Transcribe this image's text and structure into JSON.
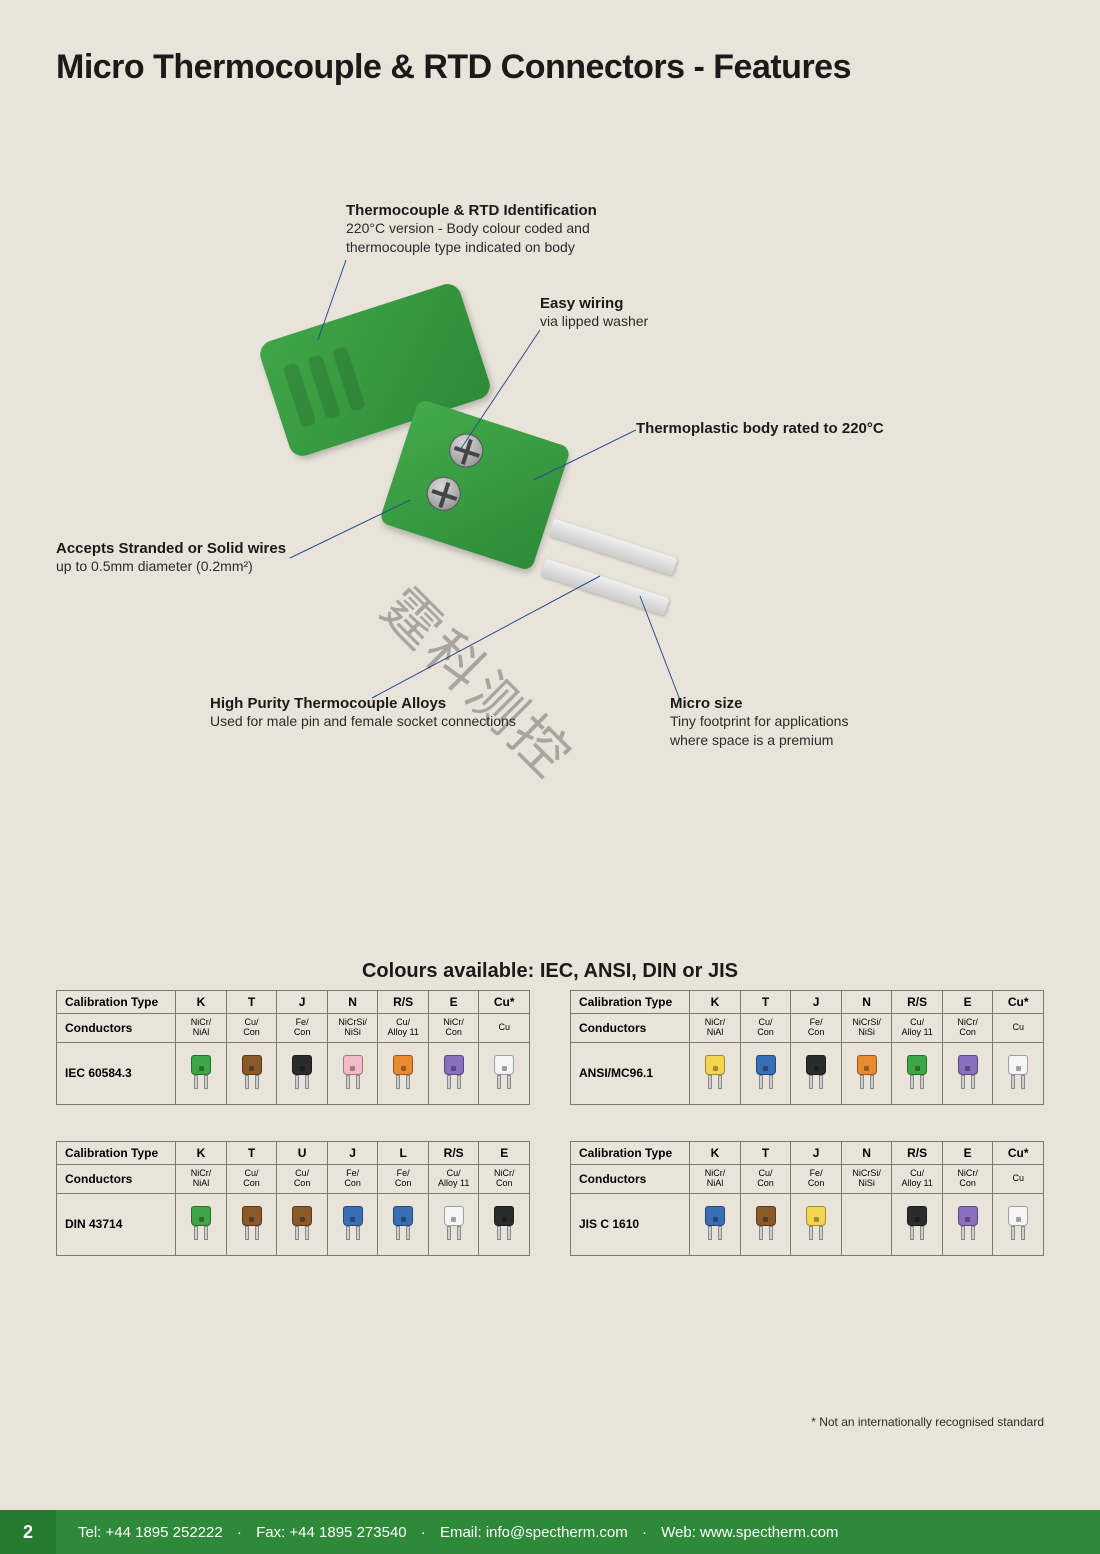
{
  "title": "Micro Thermocouple & RTD Connectors - Features",
  "callouts": {
    "identification": {
      "title": "Thermocouple & RTD Identification",
      "sub": "220°C version - Body colour coded and\nthermocouple type indicated on body"
    },
    "wiring": {
      "title": "Easy wiring",
      "sub": "via lipped washer"
    },
    "body": {
      "title": "Thermoplastic body rated to 220°C"
    },
    "wires": {
      "title": "Accepts Stranded or Solid wires",
      "sub": "up to 0.5mm diameter (0.2mm²)"
    },
    "alloys": {
      "title": "High Purity Thermocouple Alloys",
      "sub": "Used for male pin and female socket connections"
    },
    "micro": {
      "title": "Micro size",
      "sub": "Tiny footprint for applications\nwhere space is a premium"
    }
  },
  "tables_heading": "Colours available: IEC, ANSI, DIN or JIS",
  "row_labels": {
    "calibration": "Calibration Type",
    "conductors": "Conductors"
  },
  "colors": {
    "green": "#3fa648",
    "brown": "#8b5a2b",
    "black": "#2b2b2b",
    "pink": "#f4b9c9",
    "orange": "#e98a2e",
    "violet": "#8a6fbf",
    "white": "#f5f5f5",
    "yellow": "#f3d64e",
    "blue": "#3b6fb5",
    "red": "#c43a3a",
    "grey": "#6e6e6e"
  },
  "tables": [
    {
      "standard": "IEC 60584.3",
      "types": [
        "K",
        "T",
        "J",
        "N",
        "R/S",
        "E",
        "Cu*"
      ],
      "conductors": [
        "NiCr/\nNiAl",
        "Cu/\nCon",
        "Fe/\nCon",
        "NiCrSi/\nNiSi",
        "Cu/\nAlloy 11",
        "NiCr/\nCon",
        "Cu"
      ],
      "swatches": [
        "green",
        "brown",
        "black",
        "pink",
        "orange",
        "violet",
        "white"
      ]
    },
    {
      "standard": "ANSI/MC96.1",
      "types": [
        "K",
        "T",
        "J",
        "N",
        "R/S",
        "E",
        "Cu*"
      ],
      "conductors": [
        "NiCr/\nNiAl",
        "Cu/\nCon",
        "Fe/\nCon",
        "NiCrSi/\nNiSi",
        "Cu/\nAlloy 11",
        "NiCr/\nCon",
        "Cu"
      ],
      "swatches": [
        "yellow",
        "blue",
        "black",
        "orange",
        "green",
        "violet",
        "white"
      ]
    },
    {
      "standard": "DIN 43714",
      "types": [
        "K",
        "T",
        "U",
        "J",
        "L",
        "R/S",
        "E"
      ],
      "conductors": [
        "NiCr/\nNiAl",
        "Cu/\nCon",
        "Cu/\nCon",
        "Fe/\nCon",
        "Fe/\nCon",
        "Cu/\nAlloy 11",
        "NiCr/\nCon"
      ],
      "swatches": [
        "green",
        "brown",
        "brown",
        "blue",
        "blue",
        "white",
        "black"
      ]
    },
    {
      "standard": "JIS C 1610",
      "types": [
        "K",
        "T",
        "J",
        "N",
        "R/S",
        "E",
        "Cu*"
      ],
      "conductors": [
        "NiCr/\nNiAl",
        "Cu/\nCon",
        "Fe/\nCon",
        "NiCrSi/\nNiSi",
        "Cu/\nAlloy 11",
        "NiCr/\nCon",
        "Cu"
      ],
      "swatches": [
        "blue",
        "brown",
        "yellow",
        null,
        "black",
        "violet",
        "white"
      ]
    }
  ],
  "footnote": "* Not an internationally recognised standard",
  "footer": {
    "page": "2",
    "tel_label": "Tel:",
    "tel": "+44 1895 252222",
    "fax_label": "Fax:",
    "fax": "+44 1895 273540",
    "email_label": "Email:",
    "email": "info@spectherm.com",
    "web_label": "Web:",
    "web": "www.spectherm.com"
  }
}
